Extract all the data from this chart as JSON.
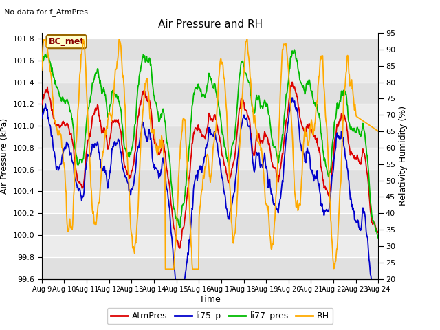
{
  "title": "Air Pressure and RH",
  "subtitle": "No data for f_AtmPres",
  "xlabel": "Time",
  "ylabel_left": "Air Pressure (kPa)",
  "ylabel_right": "Relativity Humidity (%)",
  "annotation": "BC_met",
  "ylim_left": [
    99.6,
    101.85
  ],
  "ylim_right": [
    20,
    95
  ],
  "yticks_left": [
    99.6,
    99.8,
    100.0,
    100.2,
    100.4,
    100.6,
    100.8,
    101.0,
    101.2,
    101.4,
    101.6,
    101.8
  ],
  "yticks_right": [
    20,
    25,
    30,
    35,
    40,
    45,
    50,
    55,
    60,
    65,
    70,
    75,
    80,
    85,
    90,
    95
  ],
  "xtick_labels": [
    "Aug 9",
    "Aug 10",
    "Aug 11",
    "Aug 12",
    "Aug 13",
    "Aug 14",
    "Aug 15",
    "Aug 16",
    "Aug 17",
    "Aug 18",
    "Aug 19",
    "Aug 20",
    "Aug 21",
    "Aug 22",
    "Aug 23",
    "Aug 24"
  ],
  "legend_labels": [
    "AtmPres",
    "li75_p",
    "li77_pres",
    "RH"
  ],
  "colors": {
    "AtmPres": "#dd0000",
    "li75_p": "#0000cc",
    "li77_pres": "#00bb00",
    "RH": "#ffaa00"
  },
  "band_colors": [
    "#e0e0e0",
    "#ececec"
  ],
  "n_points": 720,
  "seed": 77
}
